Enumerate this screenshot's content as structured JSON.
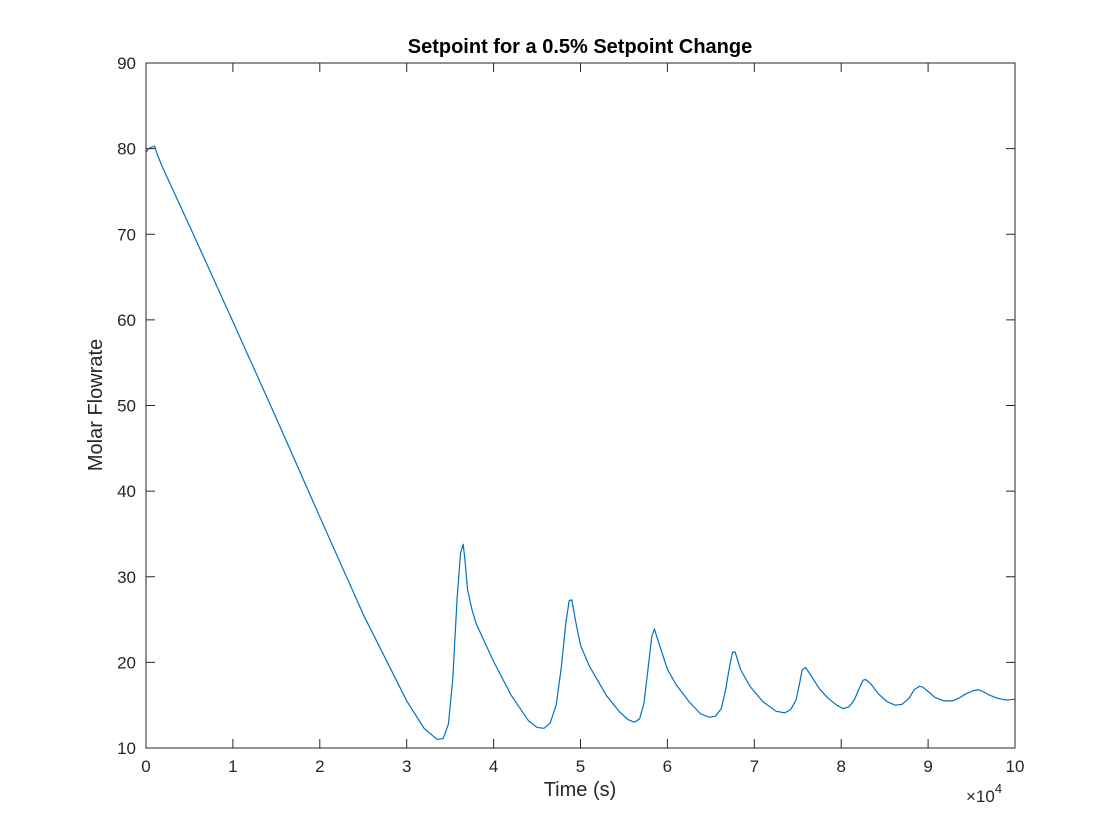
{
  "chart_data": {
    "type": "line",
    "title": "Setpoint for a 0.5% Setpoint Change",
    "xlabel": "Time (s)",
    "ylabel": "Molar Flowrate",
    "xlim": [
      0,
      100000
    ],
    "ylim": [
      10,
      90
    ],
    "x_tick_labels": [
      "0",
      "1",
      "2",
      "3",
      "4",
      "5",
      "6",
      "7",
      "8",
      "9",
      "10"
    ],
    "y_tick_labels": [
      "10",
      "20",
      "30",
      "40",
      "50",
      "60",
      "70",
      "80",
      "90"
    ],
    "x_multiplier": {
      "base": "×10",
      "exponent": "4"
    },
    "grid": false,
    "line_color": "#0072bd",
    "series": [
      {
        "x": [
          0,
          300,
          700,
          1000,
          1300,
          2000,
          5000,
          10000,
          15000,
          20000,
          25000,
          30000,
          32000,
          33500,
          34200,
          34800,
          35300,
          35800,
          36200,
          36500,
          36700,
          37000,
          37500,
          38000,
          40000,
          42000,
          44000,
          45000,
          45800,
          46500,
          47200,
          47800,
          48300,
          48700,
          49000,
          49400,
          50000,
          51000,
          53000,
          54500,
          55500,
          56200,
          56800,
          57300,
          57800,
          58200,
          58500,
          59000,
          60000,
          61000,
          62500,
          63800,
          64800,
          65500,
          66200,
          66700,
          67200,
          67500,
          67800,
          68400,
          69500,
          71000,
          72500,
          73500,
          74200,
          74800,
          75200,
          75500,
          75900,
          76500,
          77500,
          78500,
          79500,
          80200,
          80900,
          81500,
          82000,
          82500,
          82800,
          83400,
          84300,
          85300,
          86200,
          87000,
          87800,
          88400,
          89000,
          89400,
          90000,
          90800,
          91800,
          92800,
          93500,
          94300,
          95200,
          95800,
          96300,
          97000,
          98000,
          99000,
          100000
        ],
        "values": [
          79.6,
          80.0,
          80.2,
          80.3,
          79.3,
          77.6,
          71.0,
          59.8,
          48.5,
          37.0,
          25.6,
          15.5,
          12.3,
          11.0,
          11.1,
          12.8,
          18.0,
          27.5,
          32.8,
          33.8,
          32.0,
          28.5,
          26.2,
          24.5,
          20.1,
          16.2,
          13.2,
          12.4,
          12.3,
          12.9,
          15.0,
          19.5,
          24.5,
          27.2,
          27.3,
          25.0,
          22.0,
          19.6,
          16.1,
          14.2,
          13.3,
          13.0,
          13.4,
          15.2,
          19.5,
          23.0,
          23.9,
          22.3,
          19.2,
          17.4,
          15.4,
          14.0,
          13.6,
          13.7,
          14.6,
          16.8,
          19.8,
          21.2,
          21.2,
          19.2,
          17.2,
          15.4,
          14.3,
          14.1,
          14.5,
          15.6,
          17.5,
          19.1,
          19.4,
          18.5,
          16.9,
          15.8,
          15.0,
          14.6,
          14.8,
          15.6,
          16.8,
          17.9,
          18.0,
          17.5,
          16.3,
          15.4,
          15.0,
          15.1,
          15.8,
          16.8,
          17.2,
          17.1,
          16.6,
          15.9,
          15.5,
          15.5,
          15.8,
          16.3,
          16.7,
          16.8,
          16.6,
          16.2,
          15.8,
          15.6,
          15.7
        ]
      }
    ]
  }
}
